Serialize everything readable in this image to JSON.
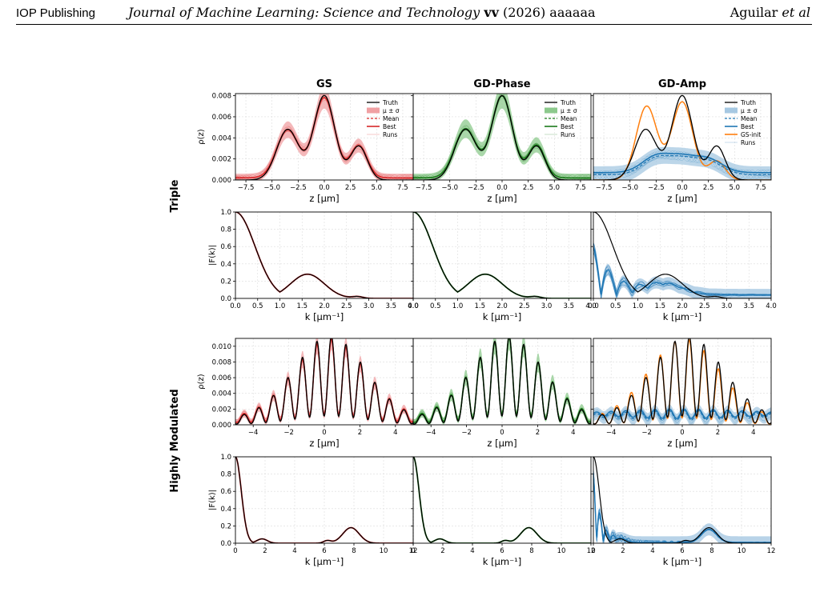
{
  "header": {
    "publisher": "IOP Publishing",
    "journal": "Journal of Machine Learning: Science and Technology",
    "volume": "vv",
    "year": "(2026)",
    "article": "aaaaaa",
    "author_name": "Aguilar",
    "author_suffix": "et al"
  },
  "figure": {
    "column_titles": [
      "GS",
      "GD-Phase",
      "GD-Amp"
    ],
    "row_group_labels": [
      "Triple",
      "Highly Modulated"
    ],
    "colors": {
      "truth": "#000000",
      "gs": "#d62728",
      "gs_band": "#f0a0a3",
      "gdphase": "#1a7a1a",
      "gdphase_band": "#8cc98c",
      "gdamp": "#1f77b4",
      "gdamp_band": "#a6c8e2",
      "gsinit": "#ff7f0e",
      "grid": "#dcdcdc"
    },
    "legends": {
      "standard": [
        "Truth",
        "μ ± σ",
        "Mean",
        "Best",
        "Runs"
      ],
      "with_init": [
        "Truth",
        "μ ± σ",
        "Mean",
        "Best",
        "GS-init",
        "Runs"
      ]
    },
    "axis_labels": {
      "rho": "ρ(z)",
      "F": "|F(k)|",
      "z": "z [μm]",
      "k": "k [μm⁻¹]"
    }
  },
  "chart_data": [
    {
      "type": "line",
      "row": 0,
      "col": 0,
      "title": "GS",
      "ylabel": "ρ(z)",
      "xlabel": "z [μm]",
      "xlim": [
        -8.5,
        8.5
      ],
      "ylim": [
        0,
        0.0082
      ],
      "xticks": [
        "-7.5",
        "-5.0",
        "-2.5",
        "0.0",
        "2.5",
        "5.0",
        "7.5"
      ],
      "yticks": [
        "0.000",
        "0.002",
        "0.004",
        "0.006",
        "0.008"
      ],
      "series": [
        {
          "name": "Truth",
          "x": [
            -8,
            -5,
            -3.5,
            -2,
            0,
            2,
            3.2,
            4.5,
            8
          ],
          "y": [
            0,
            0.0005,
            0.0048,
            0.0025,
            0.008,
            0.002,
            0.0032,
            0.0005,
            0
          ]
        },
        {
          "name": "Mean",
          "x": [
            -8,
            -5,
            -3.5,
            -2,
            0,
            2,
            3.2,
            4.5,
            8
          ],
          "y": [
            0,
            0.0007,
            0.0045,
            0.0025,
            0.0076,
            0.002,
            0.003,
            0.0006,
            0
          ]
        }
      ],
      "legend": "top-right"
    },
    {
      "type": "line",
      "row": 0,
      "col": 1,
      "title": "GD-Phase",
      "ylabel": "",
      "xlabel": "z [μm]",
      "xlim": [
        -8.5,
        8.5
      ],
      "ylim": [
        0,
        0.0082
      ],
      "xticks": [
        "-7.5",
        "-5.0",
        "-2.5",
        "0.0",
        "2.5",
        "5.0",
        "7.5"
      ],
      "yticks": [],
      "series": [
        {
          "name": "Truth",
          "x": [
            -8,
            -5,
            -3.5,
            -2,
            0,
            2,
            3.2,
            4.5,
            8
          ],
          "y": [
            0,
            0.0005,
            0.0048,
            0.0025,
            0.008,
            0.002,
            0.0032,
            0.0005,
            0
          ]
        },
        {
          "name": "Mean",
          "x": [
            -8,
            -5,
            -3.5,
            -2,
            0,
            2,
            3.2,
            4.5,
            8
          ],
          "y": [
            0,
            0.0008,
            0.0052,
            0.0026,
            0.0078,
            0.002,
            0.0029,
            0.0006,
            0
          ]
        }
      ],
      "legend": "top-right"
    },
    {
      "type": "line",
      "row": 0,
      "col": 2,
      "title": "GD-Amp",
      "ylabel": "",
      "xlabel": "z [μm]",
      "xlim": [
        -8.5,
        8.5
      ],
      "ylim": [
        0,
        0.0082
      ],
      "xticks": [
        "-7.5",
        "-5.0",
        "-2.5",
        "0.0",
        "2.5",
        "5.0",
        "7.5"
      ],
      "yticks": [],
      "series": [
        {
          "name": "Truth",
          "x": [
            -8,
            -5,
            -3.5,
            -2,
            0,
            2,
            3.2,
            4.5,
            8
          ],
          "y": [
            0,
            0.0005,
            0.0048,
            0.0025,
            0.008,
            0.002,
            0.0032,
            0.0005,
            0
          ]
        },
        {
          "name": "GS-init",
          "x": [
            -8,
            -5,
            -3.5,
            -2,
            0,
            2,
            3.2,
            4.5,
            8
          ],
          "y": [
            0,
            0.0007,
            0.007,
            0.0025,
            0.0074,
            0.0015,
            0.002,
            0.0005,
            0
          ]
        },
        {
          "name": "Mean",
          "x": [
            -8,
            -5,
            -3,
            -1,
            0,
            1,
            3,
            5,
            8
          ],
          "y": [
            0.0007,
            0.001,
            0.0017,
            0.001,
            0.0012,
            0.0011,
            0.0015,
            0.001,
            0.0005
          ]
        }
      ],
      "legend": "top-right"
    },
    {
      "type": "line",
      "row": 1,
      "col": 0,
      "ylabel": "|F(k)|",
      "xlabel": "k [μm⁻¹]",
      "xlim": [
        0,
        4
      ],
      "ylim": [
        0,
        1
      ],
      "xticks": [
        "0.0",
        "0.5",
        "1.0",
        "1.5",
        "2.0",
        "2.5",
        "3.0",
        "3.5",
        "4.0"
      ],
      "yticks": [
        "0.0",
        "0.2",
        "0.4",
        "0.6",
        "0.8",
        "1.0"
      ],
      "series": [
        {
          "name": "Truth",
          "x": [
            0,
            0.4,
            0.85,
            1.6,
            2.3,
            2.7,
            4
          ],
          "y": [
            1,
            0.55,
            0.03,
            0.28,
            0.02,
            0.03,
            0
          ]
        }
      ]
    },
    {
      "type": "line",
      "row": 1,
      "col": 1,
      "ylabel": "",
      "xlabel": "k [μm⁻¹]",
      "xlim": [
        0,
        4
      ],
      "ylim": [
        0,
        1
      ],
      "xticks": [
        "0.0",
        "0.5",
        "1.0",
        "1.5",
        "2.0",
        "2.5",
        "3.0",
        "3.5",
        "4.0"
      ],
      "yticks": [],
      "series": [
        {
          "name": "Truth",
          "x": [
            0,
            0.4,
            0.85,
            1.6,
            2.3,
            2.7,
            4
          ],
          "y": [
            1,
            0.55,
            0.03,
            0.28,
            0.02,
            0.03,
            0
          ]
        }
      ]
    },
    {
      "type": "line",
      "row": 1,
      "col": 2,
      "ylabel": "",
      "xlabel": "k [μm⁻¹]",
      "xlim": [
        0,
        4
      ],
      "ylim": [
        0,
        1
      ],
      "xticks": [
        "0.0",
        "0.5",
        "1.0",
        "1.5",
        "2.0",
        "2.5",
        "3.0",
        "3.5",
        "4.0"
      ],
      "yticks": [],
      "series": [
        {
          "name": "Truth",
          "x": [
            0,
            0.4,
            0.85,
            1.6,
            2.3,
            2.7,
            4
          ],
          "y": [
            1,
            0.55,
            0.03,
            0.28,
            0.02,
            0.03,
            0
          ]
        }
      ]
    },
    {
      "type": "line",
      "row": 2,
      "col": 0,
      "ylabel": "ρ(z)",
      "xlabel": "z [μm]",
      "xlim": [
        -5,
        5
      ],
      "ylim": [
        0,
        0.011
      ],
      "xticks": [
        "-4",
        "-2",
        "0",
        "2",
        "4"
      ],
      "yticks": [
        "0.000",
        "0.002",
        "0.004",
        "0.006",
        "0.008",
        "0.010"
      ],
      "series": [
        {
          "name": "Truth",
          "x": [
            -5,
            -3,
            -1.5,
            0.4,
            1.2,
            3,
            5
          ],
          "y": [
            0.0006,
            0.0015,
            0.008,
            0.0105,
            0.0095,
            0.002,
            0.0005
          ]
        }
      ]
    },
    {
      "type": "line",
      "row": 2,
      "col": 1,
      "ylabel": "",
      "xlabel": "z [μm]",
      "xlim": [
        -5,
        5
      ],
      "ylim": [
        0,
        0.011
      ],
      "xticks": [
        "-4",
        "-2",
        "0",
        "2",
        "4"
      ],
      "yticks": [],
      "series": [
        {
          "name": "Truth",
          "x": [
            -5,
            -3,
            -1.5,
            0.4,
            1.2,
            3,
            5
          ],
          "y": [
            0.0006,
            0.0015,
            0.008,
            0.0105,
            0.0095,
            0.002,
            0.0005
          ]
        }
      ]
    },
    {
      "type": "line",
      "row": 2,
      "col": 2,
      "ylabel": "",
      "xlabel": "z [μm]",
      "xlim": [
        -5,
        5
      ],
      "ylim": [
        0,
        0.011
      ],
      "xticks": [
        "-4",
        "-2",
        "0",
        "2",
        "4"
      ],
      "yticks": [],
      "series": [
        {
          "name": "Truth",
          "x": [
            -5,
            -3,
            -1.5,
            0.4,
            1.2,
            3,
            5
          ],
          "y": [
            0.0006,
            0.0015,
            0.008,
            0.0105,
            0.0095,
            0.002,
            0.0005
          ]
        },
        {
          "name": "Mean",
          "x": [
            -5,
            -3,
            -1,
            0,
            1,
            3,
            5
          ],
          "y": [
            0.001,
            0.0015,
            0.002,
            0.0018,
            0.002,
            0.0015,
            0.001
          ]
        }
      ]
    },
    {
      "type": "line",
      "row": 3,
      "col": 0,
      "ylabel": "|F(k)|",
      "xlabel": "k [μm⁻¹]",
      "xlim": [
        0,
        12
      ],
      "ylim": [
        0,
        1
      ],
      "xticks": [
        "0",
        "2",
        "4",
        "6",
        "8",
        "10",
        "12"
      ],
      "yticks": [
        "0.0",
        "0.2",
        "0.4",
        "0.6",
        "0.8",
        "1.0"
      ],
      "series": [
        {
          "name": "Truth",
          "x": [
            0,
            0.5,
            1,
            1.8,
            3,
            6,
            7.8,
            9,
            12
          ],
          "y": [
            1,
            0.45,
            0.1,
            0.05,
            0.01,
            0.02,
            0.18,
            0.02,
            0
          ]
        }
      ]
    },
    {
      "type": "line",
      "row": 3,
      "col": 1,
      "ylabel": "",
      "xlabel": "k [μm⁻¹]",
      "xlim": [
        0,
        12
      ],
      "ylim": [
        0,
        1
      ],
      "xticks": [
        "0",
        "2",
        "4",
        "6",
        "8",
        "10",
        "12"
      ],
      "yticks": [],
      "series": [
        {
          "name": "Truth",
          "x": [
            0,
            0.5,
            1,
            1.8,
            3,
            6,
            7.8,
            9,
            12
          ],
          "y": [
            1,
            0.45,
            0.1,
            0.05,
            0.01,
            0.02,
            0.18,
            0.02,
            0
          ]
        }
      ]
    },
    {
      "type": "line",
      "row": 3,
      "col": 2,
      "ylabel": "",
      "xlabel": "k [μm⁻¹]",
      "xlim": [
        0,
        12
      ],
      "ylim": [
        0,
        1
      ],
      "xticks": [
        "0",
        "2",
        "4",
        "6",
        "8",
        "10",
        "12"
      ],
      "yticks": [],
      "series": [
        {
          "name": "Truth",
          "x": [
            0,
            0.5,
            1,
            1.8,
            3,
            6,
            7.8,
            9,
            12
          ],
          "y": [
            1,
            0.45,
            0.1,
            0.05,
            0.01,
            0.02,
            0.18,
            0.02,
            0
          ]
        }
      ]
    }
  ]
}
